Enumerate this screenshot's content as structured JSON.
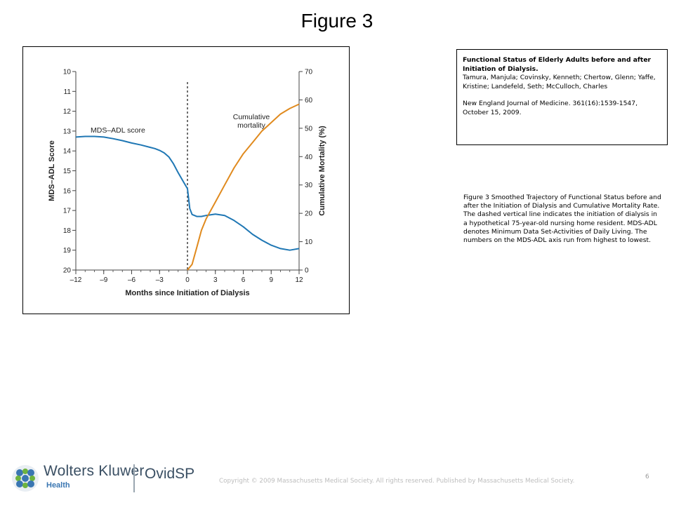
{
  "slide": {
    "title": "Figure 3",
    "page_number": "6",
    "copyright": "Copyright © 2009 Massachusetts Medical Society. All rights reserved. Published by Massachusetts Medical Society."
  },
  "citation": {
    "title": "Functional Status of Elderly Adults before and after Initiation of Dialysis.",
    "authors": "Tamura, Manjula; Covinsky, Kenneth; Chertow, Glenn; Yaffe, Kristine; Landefeld, Seth; McCulloch, Charles",
    "journal": "New England Journal of Medicine. 361(16):1539-1547, October 15, 2009."
  },
  "caption": "Figure 3 Smoothed Trajectory of Functional Status before and after the Initiation of Dialysis and Cumulative Mortality Rate. The dashed vertical line indicates the initiation of dialysis in a hypothetical 75-year-old nursing home resident. MDS-ADL denotes Minimum Data Set-Activities of Daily Living. The numbers on the MDS-ADL axis run from highest to lowest.",
  "footer": {
    "brand": "Wolters Kluwer",
    "brand_sub": "Health",
    "product": "OvidSP"
  },
  "chart_data": {
    "type": "line",
    "xlabel": "Months since Initiation of Dialysis",
    "ylabel_left": "MDS–ADL Score",
    "ylabel_right": "Cumulative Mortality (%)",
    "xlim": [
      -12,
      12
    ],
    "x_ticks": [
      -12,
      -9,
      -6,
      -3,
      0,
      3,
      6,
      9,
      12
    ],
    "x_tick_labels": [
      "–12",
      "–9",
      "–6",
      "–3",
      "0",
      "3",
      "6",
      "9",
      "12"
    ],
    "ylim_left": [
      10,
      20
    ],
    "y_left_inverted": true,
    "y_left_ticks": [
      10,
      11,
      12,
      13,
      14,
      15,
      16,
      17,
      18,
      19,
      20
    ],
    "ylim_right": [
      0,
      70
    ],
    "y_right_ticks": [
      0,
      10,
      20,
      30,
      40,
      50,
      60,
      70
    ],
    "reference_line": {
      "x": 0,
      "style": "dashed"
    },
    "grid": false,
    "series": [
      {
        "name": "MDS–ADL score",
        "axis": "left",
        "color": "#1f77b4",
        "x": [
          -12,
          -11,
          -10,
          -9,
          -8,
          -7,
          -6,
          -5,
          -4,
          -3.5,
          -3,
          -2.5,
          -2,
          -1.5,
          -1,
          -0.5,
          0,
          0.25,
          0.5,
          1,
          1.5,
          2,
          3,
          4,
          5,
          6,
          7,
          8,
          9,
          10,
          11,
          12
        ],
        "values": [
          13.3,
          13.27,
          13.27,
          13.3,
          13.38,
          13.48,
          13.6,
          13.7,
          13.82,
          13.88,
          13.97,
          14.1,
          14.3,
          14.65,
          15.1,
          15.5,
          15.9,
          16.9,
          17.2,
          17.3,
          17.3,
          17.25,
          17.18,
          17.25,
          17.5,
          17.82,
          18.2,
          18.5,
          18.75,
          18.92,
          19.0,
          18.92
        ],
        "label": "MDS–ADL score"
      },
      {
        "name": "Cumulative mortality",
        "axis": "right",
        "color": "#e08a1e",
        "x": [
          0,
          0.5,
          1,
          1.5,
          2,
          3,
          4,
          5,
          6,
          7,
          8,
          9,
          10,
          11,
          12
        ],
        "values": [
          0,
          2,
          8,
          14,
          18,
          24,
          30,
          36,
          41,
          45,
          49,
          52,
          55,
          57,
          58.5
        ],
        "label": "Cumulative\nmortality"
      }
    ]
  }
}
